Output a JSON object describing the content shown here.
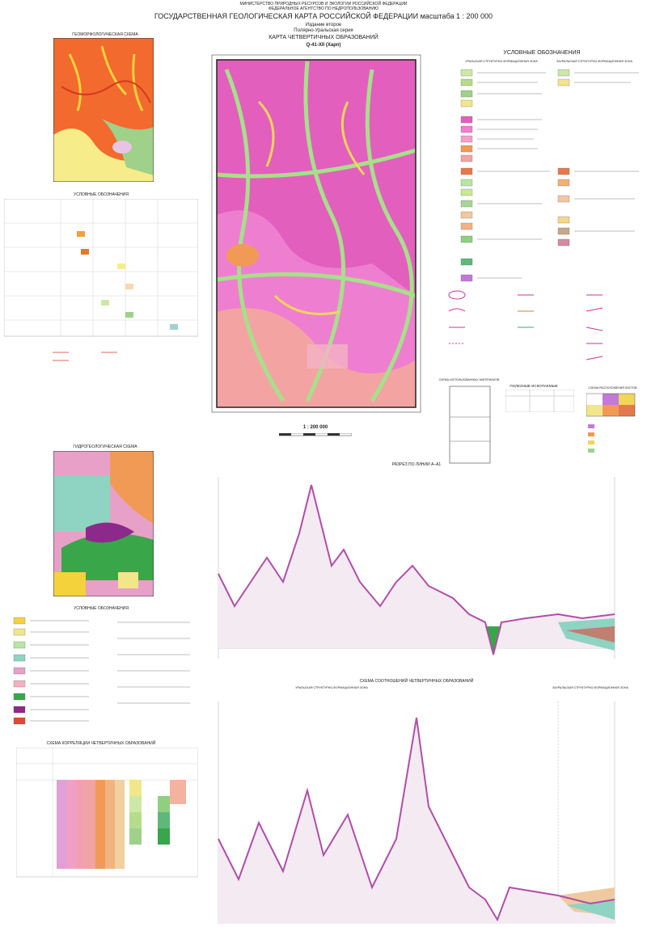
{
  "header": {
    "ministry": "МИНИСТЕРСТВО ПРИРОДНЫХ РЕСУРСОВ И ЭКОЛОГИИ РОССИЙСКОЙ ФЕДЕРАЦИИ",
    "agency": "ФЕДЕРАЛЬНОЕ АГЕНТСТВО ПО НЕДРОПОЛЬЗОВАНИЮ",
    "title": "ГОСУДАРСТВЕННАЯ ГЕОЛОГИЧЕСКАЯ КАРТА РОССИЙСКОЙ ФЕДЕРАЦИИ масштаба 1 : 200 000",
    "edition": "Издание второе",
    "series": "Полярно-Уральская серия",
    "map_title": "КАРТА ЧЕТВЕРТИЧНЫХ ОБРАЗОВАНИЙ",
    "sheet": "Q-41-XII (Харп)"
  },
  "geomorph": {
    "title": "ГЕОМОРФОЛОГИЧЕСКАЯ СХЕМА",
    "legend_title": "УСЛОВНЫЕ ОБОЗНАЧЕНИЯ"
  },
  "main_legend": {
    "title": "УСЛОВНЫЕ ОБОЗНАЧЕНИЯ",
    "zone_west": "УРАЛЬСКАЯ СТРУКТУРНО-ФОРМАЦИОННАЯ ЗОНА",
    "zone_east": "ЗАУРАЛЬСКАЯ СТРУКТУРНО-ФОРМАЦИОННАЯ ЗОНА"
  },
  "minerals": {
    "title": "ПОЛЕЗНЫЕ ИСКОПАЕМЫЕ"
  },
  "materials": {
    "title": "СХЕМА ИСПОЛЬЗОВАННЫХ МАТЕРИАЛОВ"
  },
  "sheets": {
    "title": "СХЕМА РАСПОЛОЖЕНИЯ ЛИСТОВ"
  },
  "scale": "1 : 200 000",
  "hydro": {
    "title": "ГИДРОГЕОЛОГИЧЕСКАЯ СХЕМА",
    "legend_title": "УСЛОВНЫЕ ОБОЗНАЧЕНИЯ"
  },
  "correlation": {
    "title": "СХЕМА КОРРЕЛЯЦИИ ЧЕТВЕРТИЧНЫХ ОБРАЗОВАНИЙ"
  },
  "section": {
    "title": "РАЗРЕЗ ПО ЛИНИИ А–А1"
  },
  "relations": {
    "title": "СХЕМА СООТНОШЕНИЙ ЧЕТВЕРТИЧНЫХ ОБРАЗОВАНИЙ",
    "zone_west": "УРАЛЬСКАЯ СТРУКТУРНО-ФОРМАЦИОННАЯ ЗОНА",
    "zone_east": "ЗАУРАЛЬСКАЯ СТРУКТУРНО-ФОРМАЦИОННАЯ ЗОНА"
  }
}
